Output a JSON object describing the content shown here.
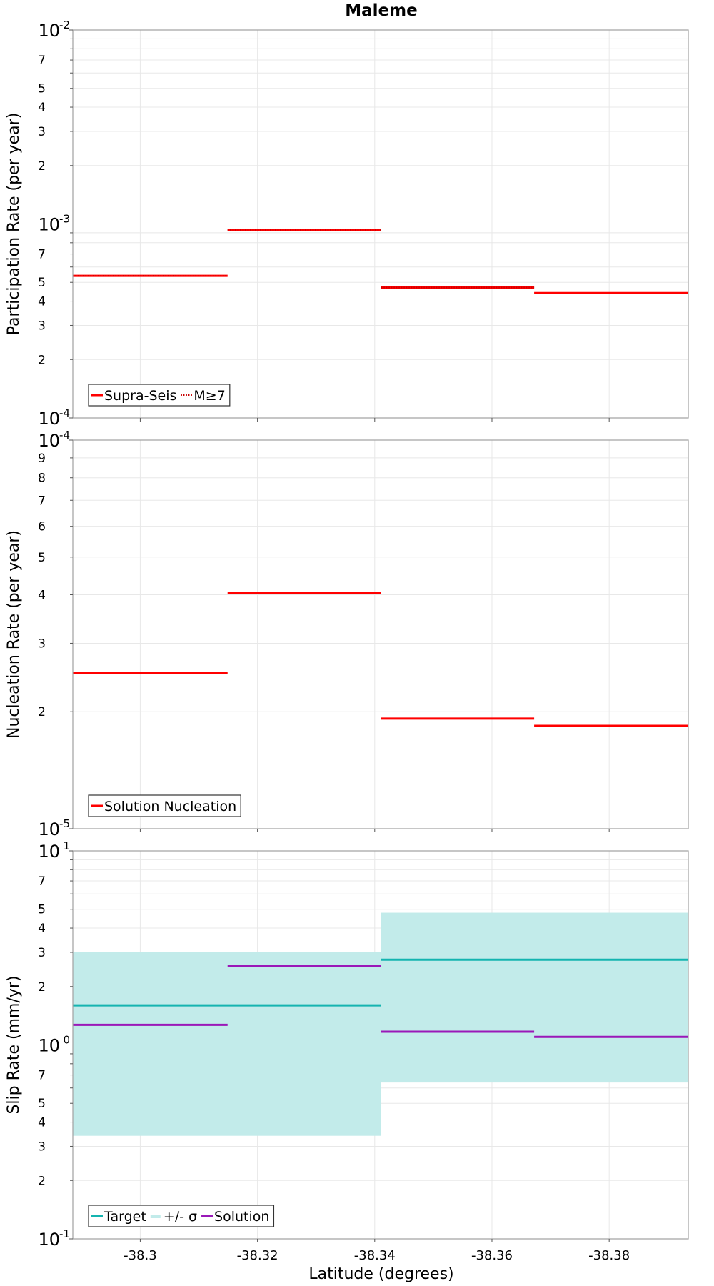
{
  "title": "Maleme",
  "xlabel": "Latitude (degrees)",
  "x_ticks": [
    "-38.3",
    "-38.32",
    "-38.34",
    "-38.36",
    "-38.38"
  ],
  "x_tick_values": [
    -38.3,
    -38.32,
    -38.34,
    -38.36,
    -38.38
  ],
  "xlim": [
    -38.2885,
    -38.3935
  ],
  "chart_data": [
    {
      "type": "line",
      "step": true,
      "ylabel": "Participation Rate (per year)",
      "yscale": "log",
      "ylim": [
        0.0001,
        0.01
      ],
      "legend": {
        "position": "bottom-left",
        "entries": [
          "Supra-Seis",
          "M≥7"
        ]
      },
      "series": [
        {
          "name": "Supra-Seis",
          "color": "#ff0000",
          "style": "solid",
          "segments": [
            {
              "x_start": -38.2885,
              "x_end": -38.3149,
              "value": 0.00054
            },
            {
              "x_start": -38.3149,
              "x_end": -38.3411,
              "value": 0.00093
            },
            {
              "x_start": -38.3411,
              "x_end": -38.3672,
              "value": 0.00047
            },
            {
              "x_start": -38.3672,
              "x_end": -38.3935,
              "value": 0.00044
            }
          ]
        },
        {
          "name": "M≥7",
          "color": "#ff0000",
          "style": "dotted",
          "segments": [
            {
              "x_start": -38.2885,
              "x_end": -38.3149,
              "value": 0.00054
            },
            {
              "x_start": -38.3149,
              "x_end": -38.3411,
              "value": 0.00093
            },
            {
              "x_start": -38.3411,
              "x_end": -38.3672,
              "value": 0.00047
            }
          ]
        }
      ]
    },
    {
      "type": "line",
      "step": true,
      "ylabel": "Nucleation Rate (per year)",
      "yscale": "log",
      "ylim": [
        1e-05,
        0.0001
      ],
      "legend": {
        "position": "bottom-left",
        "entries": [
          "Solution Nucleation"
        ]
      },
      "series": [
        {
          "name": "Solution Nucleation",
          "color": "#ff0000",
          "style": "solid",
          "segments": [
            {
              "x_start": -38.2885,
              "x_end": -38.3149,
              "value": 2.52e-05
            },
            {
              "x_start": -38.3149,
              "x_end": -38.3411,
              "value": 4.05e-05
            },
            {
              "x_start": -38.3411,
              "x_end": -38.3672,
              "value": 1.92e-05
            },
            {
              "x_start": -38.3672,
              "x_end": -38.3935,
              "value": 1.84e-05
            }
          ]
        }
      ]
    },
    {
      "type": "line",
      "step": true,
      "ylabel": "Slip Rate (mm/yr)",
      "yscale": "log",
      "ylim": [
        0.1,
        10
      ],
      "legend": {
        "position": "bottom-left",
        "entries": [
          "Target",
          "+/- σ",
          "Solution"
        ]
      },
      "bands": [
        {
          "name": "+/- σ",
          "color": "#c2ebea",
          "segments": [
            {
              "x_start": -38.2885,
              "x_end": -38.3411,
              "low": 0.34,
              "high": 3.0
            },
            {
              "x_start": -38.3411,
              "x_end": -38.3935,
              "low": 0.64,
              "high": 4.8
            }
          ]
        }
      ],
      "series": [
        {
          "name": "Target",
          "color": "#14b4b0",
          "style": "solid",
          "segments": [
            {
              "x_start": -38.2885,
              "x_end": -38.3411,
              "value": 1.6
            },
            {
              "x_start": -38.3411,
              "x_end": -38.3935,
              "value": 2.75
            }
          ]
        },
        {
          "name": "Solution",
          "color": "#9a18b8",
          "style": "solid",
          "segments": [
            {
              "x_start": -38.2885,
              "x_end": -38.3149,
              "value": 1.27
            },
            {
              "x_start": -38.3149,
              "x_end": -38.3411,
              "value": 2.55
            },
            {
              "x_start": -38.3411,
              "x_end": -38.3672,
              "value": 1.17
            },
            {
              "x_start": -38.3672,
              "x_end": -38.3935,
              "value": 1.1
            }
          ]
        }
      ]
    }
  ]
}
